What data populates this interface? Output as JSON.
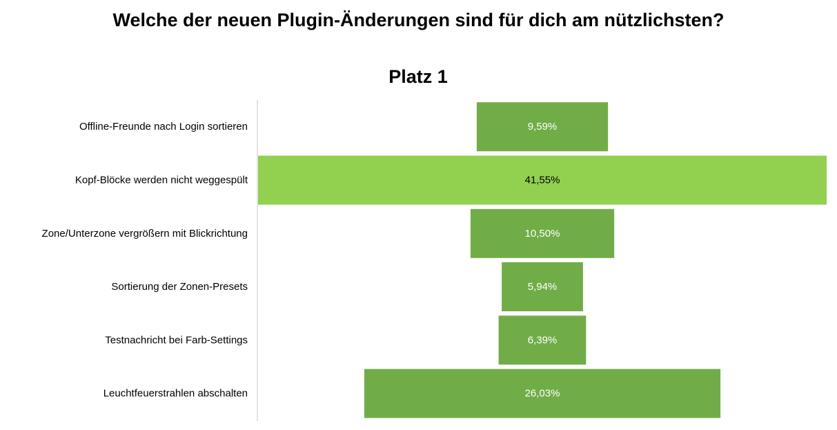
{
  "chart_data": {
    "type": "bar",
    "orientation": "horizontal",
    "style": "funnel (bars centered)",
    "title": "Welche der neuen Plugin-Änderungen sind für dich am nützlichsten?",
    "subtitle": "Platz 1",
    "categories": [
      "Offline-Freunde nach Login sortieren",
      "Kopf-Blöcke werden nicht weggespült",
      "Zone/Unterzone vergrößern mit Blickrichtung",
      "Sortierung der Zonen-Presets",
      "Testnachricht bei Farb-Settings",
      "Leuchtfeuerstrahlen abschalten"
    ],
    "values": [
      9.59,
      41.55,
      10.5,
      5.94,
      6.39,
      26.03
    ],
    "data_labels": [
      "9,59%",
      "41,55%",
      "10,50%",
      "5,94%",
      "6,39%",
      "26,03%"
    ],
    "xlim": [
      0,
      41.55
    ],
    "grid": false,
    "legend": "none",
    "colors": {
      "bar": "#70ad47",
      "bar_highlight": "#92d050",
      "label_on_bar": "#ffffff",
      "label_on_highlight": "#000000",
      "axis_line": "#d9d9d9"
    },
    "highlight_index": 1
  }
}
